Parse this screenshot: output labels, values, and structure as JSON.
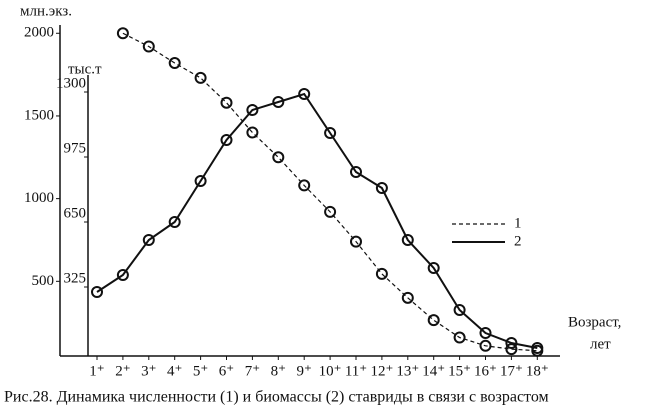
{
  "chart_data": {
    "type": "line",
    "caption": "Рис.28. Динамика численности (1) и биомассы (2) ставриды в связи с возрастом",
    "y_label": "млн.экз.",
    "y2_label": "тыс.т",
    "x_label": [
      "Возраст,",
      "лет"
    ],
    "categories": [
      "1⁺",
      "2⁺",
      "3⁺",
      "4⁺",
      "5⁺",
      "6⁺",
      "7⁺",
      "8⁺",
      "9⁺",
      "10⁺",
      "11⁺",
      "12⁺",
      "13⁺",
      "14⁺",
      "15⁺",
      "16⁺",
      "17⁺",
      "18⁺"
    ],
    "series": [
      {
        "name": "1",
        "color": "#111111",
        "dash": true,
        "axis": "y",
        "values": [
          null,
          2000,
          1920,
          1820,
          1730,
          1580,
          1400,
          1250,
          1080,
          920,
          740,
          545,
          400,
          265,
          160,
          110,
          90,
          80
        ]
      },
      {
        "name": "2",
        "color": "#111111",
        "dash": false,
        "axis": "y2",
        "values": [
          300,
          385,
          560,
          650,
          855,
          1060,
          1210,
          1250,
          1290,
          1095,
          900,
          820,
          560,
          420,
          210,
          95,
          45,
          20
        ]
      }
    ],
    "ylim": [
      0,
      2050
    ],
    "yticks": [
      500,
      1000,
      1500,
      2000
    ],
    "y2lim": [
      0,
      1385
    ],
    "y2ticks": [
      325,
      650,
      975,
      1300
    ],
    "grid": false
  }
}
